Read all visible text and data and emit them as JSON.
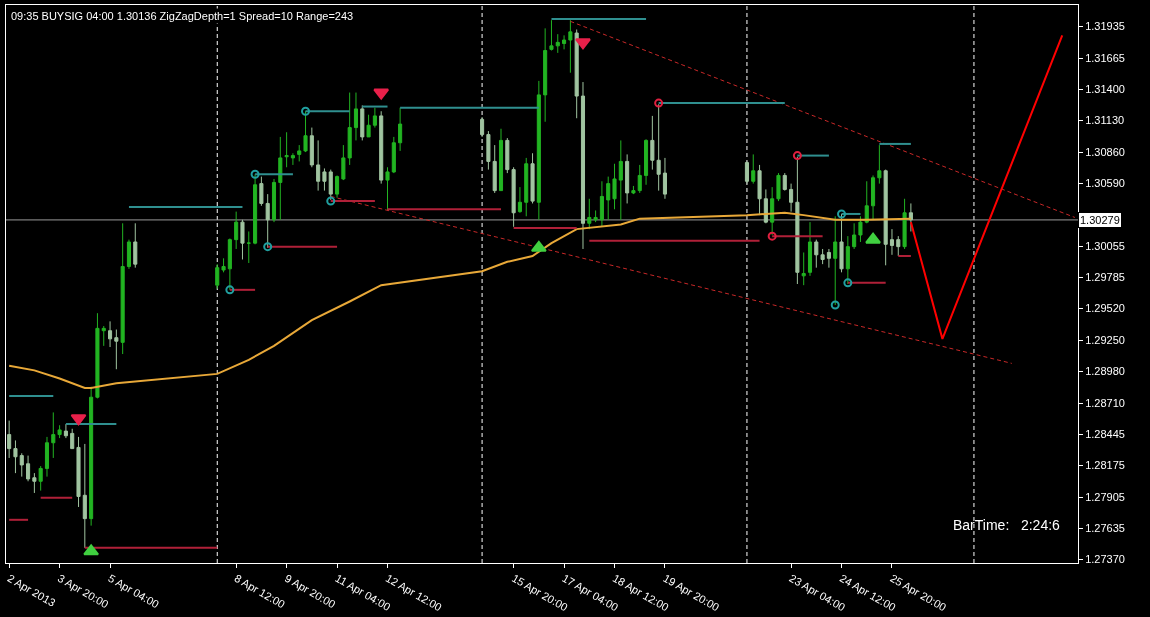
{
  "chart_data": {
    "type": "candlestick",
    "title": "09:35 BUYSIG 04:00 1.30136 ZigZagDepth=1 Spread=10 Range=243",
    "annotations": [
      "BarTime:   2:24:6"
    ],
    "x": [
      "2013-04-02T12:00",
      "2013-04-02T16:00",
      "2013-04-02T20:00",
      "2013-04-03T00:00",
      "2013-04-03T04:00",
      "2013-04-03T08:00",
      "2013-04-03T12:00",
      "2013-04-03T16:00",
      "2013-04-03T20:00",
      "2013-04-04T00:00",
      "2013-04-04T04:00",
      "2013-04-04T08:00",
      "2013-04-04T12:00",
      "2013-04-04T16:00",
      "2013-04-04T20:00",
      "2013-04-05T00:00",
      "2013-04-05T04:00",
      "2013-04-05T08:00",
      "2013-04-05T12:00",
      "2013-04-05T16:00",
      "2013-04-05T20:00",
      "2013-04-08T00:00",
      "2013-04-08T04:00",
      "2013-04-08T08:00",
      "2013-04-08T12:00",
      "2013-04-08T16:00",
      "2013-04-08T20:00",
      "2013-04-09T00:00",
      "2013-04-09T04:00",
      "2013-04-09T08:00",
      "2013-04-09T12:00",
      "2013-04-09T16:00",
      "2013-04-09T20:00",
      "2013-04-10T00:00",
      "2013-04-10T04:00",
      "2013-04-10T08:00",
      "2013-04-10T12:00",
      "2013-04-10T16:00",
      "2013-04-10T20:00",
      "2013-04-11T00:00",
      "2013-04-11T04:00",
      "2013-04-11T08:00",
      "2013-04-11T12:00",
      "2013-04-11T16:00",
      "2013-04-11T20:00",
      "2013-04-12T00:00",
      "2013-04-12T04:00",
      "2013-04-12T08:00",
      "2013-04-12T12:00",
      "2013-04-12T16:00",
      "2013-04-12T20:00",
      "2013-04-15T00:00",
      "2013-04-15T04:00",
      "2013-04-15T08:00",
      "2013-04-15T12:00",
      "2013-04-15T16:00",
      "2013-04-15T20:00",
      "2013-04-16T00:00",
      "2013-04-16T04:00",
      "2013-04-16T08:00",
      "2013-04-16T12:00",
      "2013-04-16T16:00",
      "2013-04-16T20:00",
      "2013-04-17T00:00",
      "2013-04-17T04:00",
      "2013-04-17T08:00",
      "2013-04-17T12:00",
      "2013-04-17T16:00",
      "2013-04-17T20:00",
      "2013-04-18T00:00",
      "2013-04-18T04:00",
      "2013-04-18T08:00",
      "2013-04-18T12:00",
      "2013-04-18T16:00",
      "2013-04-18T20:00",
      "2013-04-19T00:00",
      "2013-04-19T04:00",
      "2013-04-19T08:00",
      "2013-04-19T12:00",
      "2013-04-19T16:00",
      "2013-04-19T20:00",
      "2013-04-22T00:00",
      "2013-04-22T04:00",
      "2013-04-22T08:00",
      "2013-04-22T12:00",
      "2013-04-22T16:00",
      "2013-04-22T20:00",
      "2013-04-23T00:00",
      "2013-04-23T04:00",
      "2013-04-23T08:00",
      "2013-04-23T12:00",
      "2013-04-23T16:00",
      "2013-04-23T20:00",
      "2013-04-24T00:00",
      "2013-04-24T04:00",
      "2013-04-24T08:00",
      "2013-04-24T12:00",
      "2013-04-24T16:00",
      "2013-04-24T20:00",
      "2013-04-25T00:00",
      "2013-04-25T04:00",
      "2013-04-25T08:00",
      "2013-04-25T12:00",
      "2013-04-25T16:00",
      "2013-04-25T20:00",
      "2013-04-26T00:00",
      "2013-04-26T04:00",
      "2013-04-26T08:00"
    ],
    "ohlc": [
      [
        1.2844,
        1.2856,
        1.2824,
        1.2832
      ],
      [
        1.2832,
        1.2839,
        1.2811,
        1.2825
      ],
      [
        1.2826,
        1.2828,
        1.2808,
        1.2818
      ],
      [
        1.2819,
        1.2826,
        1.2804,
        1.2806
      ],
      [
        1.2807,
        1.2811,
        1.2794,
        1.2804
      ],
      [
        1.2804,
        1.2817,
        1.2796,
        1.2815
      ],
      [
        1.2815,
        1.2842,
        1.2808,
        1.2837
      ],
      [
        1.2837,
        1.2863,
        1.2824,
        1.2844
      ],
      [
        1.2844,
        1.2852,
        1.2841,
        1.2848
      ],
      [
        1.2847,
        1.2853,
        1.2841,
        1.2843
      ],
      [
        1.2845,
        1.2849,
        1.2832,
        1.2832
      ],
      [
        1.2833,
        1.2842,
        1.2782,
        1.2791
      ],
      [
        1.2792,
        1.2836,
        1.2747,
        1.2772
      ],
      [
        1.2772,
        1.2885,
        1.2766,
        1.2876
      ],
      [
        1.2876,
        1.2948,
        1.2875,
        1.2935
      ],
      [
        1.2933,
        1.2937,
        1.292,
        1.2935
      ],
      [
        1.2933,
        1.2941,
        1.2919,
        1.2926
      ],
      [
        1.2927,
        1.2934,
        1.29,
        1.2924
      ],
      [
        1.2923,
        1.3025,
        1.2913,
        1.2988
      ],
      [
        1.2988,
        1.3011,
        1.2986,
        1.3009
      ],
      [
        1.3009,
        1.3025,
        1.2987,
        1.299
      ],
      [
        1.2972,
        1.299,
        1.2969,
        1.2987
      ],
      [
        1.2985,
        1.2995,
        1.2983,
        1.2988
      ],
      [
        1.2986,
        1.3012,
        1.2968,
        1.3011
      ],
      [
        1.3011,
        1.3035,
        1.3003,
        1.3026
      ],
      [
        1.3026,
        1.3028,
        1.2994,
        1.3008
      ],
      [
        1.3008,
        1.3018,
        1.2991,
        1.3008
      ],
      [
        1.3008,
        1.3067,
        1.3007,
        1.3058
      ],
      [
        1.3059,
        1.3065,
        1.304,
        1.3042
      ],
      [
        1.3042,
        1.305,
        1.3004,
        1.3028
      ],
      [
        1.3028,
        1.3063,
        1.3026,
        1.306
      ],
      [
        1.306,
        1.3099,
        1.3028,
        1.3081
      ],
      [
        1.3082,
        1.3103,
        1.3073,
        1.3083
      ],
      [
        1.3081,
        1.3085,
        1.3075,
        1.3083
      ],
      [
        1.3084,
        1.3092,
        1.3078,
        1.3087
      ],
      [
        1.3087,
        1.3121,
        1.3086,
        1.31
      ],
      [
        1.31,
        1.3107,
        1.3073,
        1.3075
      ],
      [
        1.3075,
        1.3096,
        1.3053,
        1.3061
      ],
      [
        1.3069,
        1.3072,
        1.3053,
        1.3061
      ],
      [
        1.3069,
        1.3071,
        1.3045,
        1.305
      ],
      [
        1.305,
        1.3066,
        1.3047,
        1.3065
      ],
      [
        1.3063,
        1.3092,
        1.3062,
        1.3081
      ],
      [
        1.3081,
        1.3137,
        1.3075,
        1.3107
      ],
      [
        1.3107,
        1.3137,
        1.3096,
        1.3123
      ],
      [
        1.3123,
        1.3126,
        1.3096,
        1.3099
      ],
      [
        1.3099,
        1.3118,
        1.3099,
        1.3109
      ],
      [
        1.3109,
        1.3124,
        1.3107,
        1.3117
      ],
      [
        1.3117,
        1.3121,
        1.3059,
        1.3062
      ],
      [
        1.3062,
        1.3073,
        1.3036,
        1.3069
      ],
      [
        1.3069,
        1.3099,
        1.3068,
        1.3094
      ],
      [
        1.3094,
        1.3124,
        1.3087,
        1.311
      ],
      [
        1.3114,
        1.3116,
        1.3099,
        1.3101
      ],
      [
        1.3101,
        1.3104,
        1.3071,
        1.3078
      ],
      [
        1.3078,
        1.3092,
        1.3051,
        1.3053
      ],
      [
        1.3053,
        1.3106,
        1.3053,
        1.3096
      ],
      [
        1.3096,
        1.3098,
        1.3068,
        1.3071
      ],
      [
        1.3071,
        1.3073,
        1.3022,
        1.3034
      ],
      [
        1.3035,
        1.3056,
        1.3034,
        1.3043
      ],
      [
        1.3043,
        1.3081,
        1.3031,
        1.3076
      ],
      [
        1.3076,
        1.3085,
        1.3042,
        1.3044
      ],
      [
        1.3043,
        1.3147,
        1.3028,
        1.3135
      ],
      [
        1.3135,
        1.3192,
        1.3112,
        1.3173
      ],
      [
        1.3174,
        1.3199,
        1.3173,
        1.3177
      ],
      [
        1.3177,
        1.3187,
        1.3171,
        1.318
      ],
      [
        1.3179,
        1.3186,
        1.3174,
        1.3182
      ],
      [
        1.3182,
        1.3199,
        1.3154,
        1.3189
      ],
      [
        1.3188,
        1.3191,
        1.3115,
        1.3134
      ],
      [
        1.3134,
        1.3146,
        1.3003,
        1.3025
      ],
      [
        1.3025,
        1.3046,
        1.302,
        1.303
      ],
      [
        1.3028,
        1.3036,
        1.3026,
        1.303
      ],
      [
        1.3028,
        1.3061,
        1.3022,
        1.3048
      ],
      [
        1.3045,
        1.3065,
        1.3028,
        1.3059
      ],
      [
        1.3046,
        1.3076,
        1.3037,
        1.3063
      ],
      [
        1.3062,
        1.3096,
        1.3028,
        1.3078
      ],
      [
        1.3078,
        1.3084,
        1.3042,
        1.3051
      ],
      [
        1.3051,
        1.3057,
        1.305,
        1.3053
      ],
      [
        1.3053,
        1.3075,
        1.3051,
        1.3066
      ],
      [
        1.3066,
        1.3097,
        1.3058,
        1.3096
      ],
      [
        1.3096,
        1.3117,
        1.3071,
        1.3079
      ],
      [
        1.3079,
        1.3127,
        1.3053,
        1.3067
      ],
      [
        1.3068,
        1.3081,
        1.3046,
        1.305
      ],
      [
        1.3077,
        1.3078,
        1.3059,
        1.3061
      ],
      [
        1.3061,
        1.3084,
        1.3059,
        1.307
      ],
      [
        1.307,
        1.3075,
        1.3032,
        1.3046
      ],
      [
        1.3046,
        1.3054,
        1.3025,
        1.3026
      ],
      [
        1.3026,
        1.3056,
        1.3015,
        1.3046
      ],
      [
        1.3046,
        1.3068,
        1.3044,
        1.3066
      ],
      [
        1.3066,
        1.3068,
        1.3053,
        1.3054
      ],
      [
        1.3054,
        1.3059,
        1.3035,
        1.3043
      ],
      [
        1.3043,
        1.3082,
        1.2973,
        1.2983
      ],
      [
        1.298,
        1.3,
        1.2972,
        1.2982
      ],
      [
        1.2983,
        1.3026,
        1.298,
        1.3009
      ],
      [
        1.3009,
        1.3011,
        1.2987,
        1.2998
      ],
      [
        1.2998,
        1.3003,
        1.299,
        1.2994
      ],
      [
        1.3,
        1.3003,
        1.2987,
        1.2995
      ],
      [
        1.2995,
        1.3031,
        1.2955,
        1.3009
      ],
      [
        1.3009,
        1.3033,
        1.2983,
        1.2986
      ],
      [
        1.2986,
        1.3014,
        1.2973,
        1.3005
      ],
      [
        1.3005,
        1.3025,
        1.3003,
        1.3015
      ],
      [
        1.3015,
        1.3031,
        1.3009,
        1.3026
      ],
      [
        1.3026,
        1.3061,
        1.3025,
        1.304
      ],
      [
        1.304,
        1.3066,
        1.3028,
        1.3064
      ],
      [
        1.3064,
        1.3092,
        1.3059,
        1.307
      ],
      [
        1.307,
        1.3071,
        1.2989,
        1.3007
      ],
      [
        1.3011,
        1.302,
        1.2998,
        1.3006
      ],
      [
        1.3011,
        1.3014,
        1.2997,
        1.3005
      ],
      [
        1.3005,
        1.3046,
        1.3003,
        1.3034
      ],
      [
        1.3034,
        1.3042,
        1.3018,
        1.3028
      ]
    ],
    "colors": [
      "#a0c4a0",
      "#a0c4a0",
      "#a0c4a0",
      "#a0c4a0",
      "#a0c4a0",
      "#22b422",
      "#22b422",
      "#22b422",
      "#22b422",
      "#a0c4a0",
      "#a0c4a0",
      "#a0c4a0",
      "#a0c4a0",
      "#22b422",
      "#22b422",
      "#22b422",
      "#a0c4a0",
      "#a0c4a0",
      "#22b422",
      "#22b422",
      "#a0c4a0",
      "#22b422",
      "#22b422",
      "#22b422",
      "#22b422",
      "#a0c4a0",
      "#22b422",
      "#22b422",
      "#a0c4a0",
      "#a0c4a0",
      "#22b422",
      "#22b422",
      "#22b422",
      "#22b422",
      "#22b422",
      "#22b422",
      "#a0c4a0",
      "#a0c4a0",
      "#a0c4a0",
      "#a0c4a0",
      "#22b422",
      "#22b422",
      "#22b422",
      "#22b422",
      "#a0c4a0",
      "#22b422",
      "#22b422",
      "#a0c4a0",
      "#22b422",
      "#22b422",
      "#22b422",
      "#a0c4a0",
      "#a0c4a0",
      "#a0c4a0",
      "#22b422",
      "#a0c4a0",
      "#a0c4a0",
      "#22b422",
      "#22b422",
      "#a0c4a0",
      "#22b422",
      "#22b422",
      "#22b422",
      "#22b422",
      "#22b422",
      "#22b422",
      "#a0c4a0",
      "#a0c4a0",
      "#22b422",
      "#22b422",
      "#22b422",
      "#22b422",
      "#22b422",
      "#22b422",
      "#a0c4a0",
      "#22b422",
      "#22b422",
      "#22b422",
      "#a0c4a0",
      "#a0c4a0",
      "#a0c4a0",
      "#a0c4a0",
      "#22b422",
      "#a0c4a0",
      "#a0c4a0",
      "#22b422",
      "#22b422",
      "#a0c4a0",
      "#a0c4a0",
      "#a0c4a0",
      "#22b422",
      "#22b422",
      "#a0c4a0",
      "#a0c4a0",
      "#a0c4a0",
      "#22b422",
      "#a0c4a0",
      "#22b422",
      "#22b422",
      "#22b422",
      "#22b422",
      "#22b422",
      "#22b422",
      "#a0c4a0",
      "#a0c4a0",
      "#a0c4a0",
      "#22b422",
      "#a0c4a0"
    ],
    "series": [
      {
        "type": "line",
        "color": "#e8a838",
        "x": [
          "2013-04-02T12:00",
          "2013-04-03T04:00",
          "2013-04-03T20:00",
          "2013-04-04T12:00",
          "2013-04-04T16:00",
          "2013-04-05T08:00",
          "2013-04-08T00:00",
          "2013-04-08T20:00",
          "2013-04-09T12:00",
          "2013-04-10T12:00",
          "2013-04-11T12:00",
          "2013-04-12T08:00",
          "2013-04-15T00:00",
          "2013-04-15T16:00",
          "2013-04-16T08:00",
          "2013-04-16T20:00",
          "2013-04-17T12:00",
          "2013-04-18T16:00",
          "2013-04-19T04:00",
          "2013-04-22T00:00",
          "2013-04-23T00:00",
          "2013-04-23T12:00",
          "2013-04-24T08:00",
          "2013-04-25T04:00",
          "2013-04-26T08:00"
        ],
        "values": [
          1.2903,
          1.2899,
          1.2892,
          1.2884,
          1.2884,
          1.2888,
          1.2896,
          1.2908,
          1.292,
          1.2942,
          1.2958,
          1.2972,
          1.2984,
          1.2992,
          1.2997,
          1.3008,
          1.302,
          1.3024,
          1.3029,
          1.3032,
          1.3034,
          1.3032,
          1.3028,
          1.3028,
          1.3029
        ]
      },
      {
        "type": "line",
        "color": "#c82828",
        "line_style": "dashed",
        "x": [
          "2013-04-17T08:00",
          "2013-04-30T16:00"
        ],
        "values": [
          1.3198,
          1.303
        ]
      },
      {
        "type": "line",
        "color": "#c82828",
        "line_style": "dashed",
        "x": [
          "2013-04-11T00:00",
          "2013-04-29T00:00"
        ],
        "values": [
          1.3048,
          1.2905
        ]
      },
      {
        "type": "line",
        "color": "#2f8f8f",
        "x": [
          "2013-04-02T12:00",
          "2013-04-03T16:00"
        ],
        "values": [
          1.2877,
          1.2877
        ]
      },
      {
        "type": "line",
        "color": "#2f8f8f",
        "x": [
          "2013-04-04T00:00",
          "2013-04-05T08:00"
        ],
        "values": [
          1.2853,
          1.2853
        ]
      },
      {
        "type": "line",
        "color": "#2f8f8f",
        "x": [
          "2013-04-05T16:00",
          "2013-04-08T16:00"
        ],
        "values": [
          1.3039,
          1.3039
        ]
      },
      {
        "type": "line",
        "color": "#2f8f8f",
        "x": [
          "2013-04-09T00:00",
          "2013-04-10T00:00"
        ],
        "values": [
          1.3067,
          1.3067
        ]
      },
      {
        "type": "line",
        "color": "#2f8f8f",
        "x": [
          "2013-04-10T08:00",
          "2013-04-11T12:00"
        ],
        "values": [
          1.3121,
          1.3121
        ]
      },
      {
        "type": "line",
        "color": "#2f8f8f",
        "x": [
          "2013-04-11T20:00",
          "2013-04-12T12:00"
        ],
        "values": [
          1.3125,
          1.3125
        ]
      },
      {
        "type": "line",
        "color": "#2f8f8f",
        "x": [
          "2013-04-12T20:00",
          "2013-04-16T12:00"
        ],
        "values": [
          1.3124,
          1.3124
        ]
      },
      {
        "type": "line",
        "color": "#2f8f8f",
        "x": [
          "2013-04-16T20:00",
          "2013-04-19T08:00"
        ],
        "values": [
          1.32,
          1.32
        ]
      },
      {
        "type": "line",
        "color": "#2f8f8f",
        "x": [
          "2013-04-19T16:00",
          "2013-04-23T00:00"
        ],
        "values": [
          1.3128,
          1.3128
        ]
      },
      {
        "type": "line",
        "color": "#2f8f8f",
        "x": [
          "2013-04-23T08:00",
          "2013-04-24T04:00"
        ],
        "values": [
          1.3083,
          1.3083
        ]
      },
      {
        "type": "line",
        "color": "#2f8f8f",
        "x": [
          "2013-04-24T12:00",
          "2013-04-25T00:00"
        ],
        "values": [
          1.3033,
          1.3033
        ]
      },
      {
        "type": "line",
        "color": "#2f8f8f",
        "x": [
          "2013-04-25T12:00",
          "2013-04-26T08:00"
        ],
        "values": [
          1.3093,
          1.3093
        ]
      },
      {
        "type": "line",
        "color": "#b02038",
        "x": [
          "2013-04-02T12:00",
          "2013-04-03T00:00"
        ],
        "values": [
          1.2771,
          1.2771
        ]
      },
      {
        "type": "line",
        "color": "#b02038",
        "x": [
          "2013-04-03T08:00",
          "2013-04-04T04:00"
        ],
        "values": [
          1.279,
          1.279
        ]
      },
      {
        "type": "line",
        "color": "#b02038",
        "x": [
          "2013-04-04T12:00",
          "2013-04-08T00:00"
        ],
        "values": [
          1.2747,
          1.2747
        ]
      },
      {
        "type": "line",
        "color": "#b02038",
        "x": [
          "2013-04-08T08:00",
          "2013-04-09T00:00"
        ],
        "values": [
          1.2968,
          1.2968
        ]
      },
      {
        "type": "line",
        "color": "#b02038",
        "x": [
          "2013-04-09T08:00",
          "2013-04-11T04:00"
        ],
        "values": [
          1.3005,
          1.3005
        ]
      },
      {
        "type": "line",
        "color": "#b02038",
        "x": [
          "2013-04-11T00:00",
          "2013-04-12T04:00"
        ],
        "values": [
          1.3044,
          1.3044
        ]
      },
      {
        "type": "line",
        "color": "#b02038",
        "x": [
          "2013-04-12T12:00",
          "2013-04-15T12:00"
        ],
        "values": [
          1.3037,
          1.3037
        ]
      },
      {
        "type": "line",
        "color": "#b02038",
        "x": [
          "2013-04-15T20:00",
          "2013-04-17T12:00"
        ],
        "values": [
          1.3021,
          1.3021
        ]
      },
      {
        "type": "line",
        "color": "#b02038",
        "x": [
          "2013-04-17T20:00",
          "2013-04-22T08:00"
        ],
        "values": [
          1.301,
          1.301
        ]
      },
      {
        "type": "line",
        "color": "#b02038",
        "x": [
          "2013-04-22T16:00",
          "2013-04-24T00:00"
        ],
        "values": [
          1.3014,
          1.3014
        ]
      },
      {
        "type": "line",
        "color": "#b02038",
        "x": [
          "2013-04-24T16:00",
          "2013-04-25T16:00"
        ],
        "values": [
          1.2974,
          1.2974
        ]
      },
      {
        "type": "line",
        "color": "#b02038",
        "x": [
          "2013-04-26T00:00",
          "2013-04-26T08:00"
        ],
        "values": [
          1.2997,
          1.2997
        ]
      },
      {
        "type": "scatter",
        "color": "#20a0a0",
        "marker": "circle",
        "x": [
          "2013-04-08T08:00",
          "2013-04-09T00:00",
          "2013-04-09T08:00",
          "2013-04-10T08:00",
          "2013-04-11T00:00",
          "2013-04-24T08:00",
          "2013-04-24T12:00",
          "2013-04-24T16:00"
        ],
        "values": [
          1.2968,
          1.3067,
          1.3005,
          1.3121,
          1.3044,
          1.2955,
          1.3033,
          1.2974
        ]
      },
      {
        "type": "scatter",
        "color": "#e02040",
        "marker": "circle",
        "x": [
          "2013-04-19T16:00",
          "2013-04-22T16:00",
          "2013-04-23T08:00"
        ],
        "values": [
          1.3128,
          1.3014,
          1.3083
        ]
      },
      {
        "type": "scatter",
        "color": "#e8204a",
        "marker": "triangle-down",
        "x": [
          "2013-04-04T08:00",
          "2013-04-12T08:00",
          "2013-04-17T16:00"
        ],
        "values": [
          1.2858,
          1.3137,
          1.318
        ]
      },
      {
        "type": "scatter",
        "color": "#40d040",
        "marker": "triangle-up",
        "x": [
          "2013-04-04T16:00",
          "2013-04-16T12:00",
          "2013-04-25T08:00"
        ],
        "values": [
          1.2744,
          1.3004,
          1.3011
        ]
      },
      {
        "type": "line",
        "color": "#ff0000",
        "x": [
          "2013-04-26T08:00",
          "2013-04-27T04:00",
          "2013-04-30T08:00"
        ],
        "values": [
          1.3026,
          1.2926,
          1.3186
        ]
      }
    ],
    "ref_lines": [
      {
        "axis": "x",
        "value": "2013-04-08T00:00",
        "color": "#ffffff",
        "line_style": "dashed"
      },
      {
        "axis": "x",
        "value": "2013-04-15T00:00",
        "color": "#ffffff",
        "line_style": "dashed"
      },
      {
        "axis": "x",
        "value": "2013-04-22T00:00",
        "color": "#ffffff",
        "line_style": "dashed"
      },
      {
        "axis": "x",
        "value": "2013-04-28T00:00",
        "color": "#ffffff",
        "line_style": "dashed"
      },
      {
        "axis": "y",
        "value": 1.30279,
        "label": "1.30279",
        "color": "#9a9a9a",
        "line_style": "solid"
      }
    ],
    "xlim": [
      "2013-04-02T10:00",
      "2013-04-30T18:00"
    ],
    "xticks": [
      {
        "value": "2013-04-02T12:00",
        "label": "2 Apr 2013"
      },
      {
        "value": "2013-04-03T20:00",
        "label": "3 Apr 20:00"
      },
      {
        "value": "2013-04-05T04:00",
        "label": "5 Apr 04:00"
      },
      {
        "value": "2013-04-08T12:00",
        "label": "8 Apr 12:00"
      },
      {
        "value": "2013-04-09T20:00",
        "label": "9 Apr 20:00"
      },
      {
        "value": "2013-04-11T04:00",
        "label": "11 Apr 04:00"
      },
      {
        "value": "2013-04-12T12:00",
        "label": "12 Apr 12:00"
      },
      {
        "value": "2013-04-15T20:00",
        "label": "15 Apr 20:00"
      },
      {
        "value": "2013-04-17T04:00",
        "label": "17 Apr 04:00"
      },
      {
        "value": "2013-04-18T12:00",
        "label": "18 Apr 12:00"
      },
      {
        "value": "2013-04-19T20:00",
        "label": "19 Apr 20:00"
      },
      {
        "value": "2013-04-23T04:00",
        "label": "23 Apr 04:00"
      },
      {
        "value": "2013-04-24T12:00",
        "label": "24 Apr 12:00"
      },
      {
        "value": "2013-04-25T20:00",
        "label": "25 Apr 20:00"
      }
    ],
    "ylim": [
      1.2734,
      1.3212
    ],
    "yticks": [
      {
        "value": 1.31935,
        "label": "1.31935"
      },
      {
        "value": 1.31665,
        "label": "1.31665"
      },
      {
        "value": 1.314,
        "label": "1.31400"
      },
      {
        "value": 1.3113,
        "label": "1.31130"
      },
      {
        "value": 1.3086,
        "label": "1.30860"
      },
      {
        "value": 1.3059,
        "label": "1.30590"
      },
      {
        "value": 1.30055,
        "label": "1.30055"
      },
      {
        "value": 1.29785,
        "label": "1.29785"
      },
      {
        "value": 1.2952,
        "label": "1.29520"
      },
      {
        "value": 1.2925,
        "label": "1.29250"
      },
      {
        "value": 1.2898,
        "label": "1.28980"
      },
      {
        "value": 1.2871,
        "label": "1.28710"
      },
      {
        "value": 1.28445,
        "label": "1.28445"
      },
      {
        "value": 1.28175,
        "label": "1.28175"
      },
      {
        "value": 1.27905,
        "label": "1.27905"
      },
      {
        "value": 1.27635,
        "label": "1.27635"
      },
      {
        "value": 1.2737,
        "label": "1.27370"
      }
    ]
  }
}
